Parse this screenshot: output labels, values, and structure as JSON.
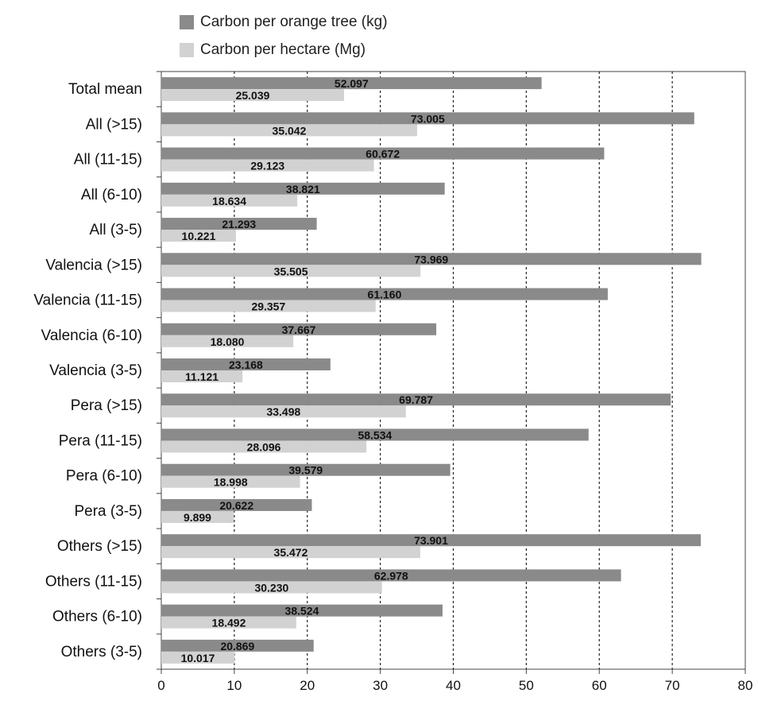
{
  "chart_data": {
    "type": "bar",
    "orientation": "horizontal",
    "categories": [
      "Total mean",
      "All (>15)",
      "All (11-15)",
      "All (6-10)",
      "All (3-5)",
      "Valencia (>15)",
      "Valencia (11-15)",
      "Valencia (6-10)",
      "Valencia (3-5)",
      "Pera (>15)",
      "Pera (11-15)",
      "Pera (6-10)",
      "Pera (3-5)",
      "Others (>15)",
      "Others (11-15)",
      "Others (6-10)",
      "Others (3-5)"
    ],
    "series": [
      {
        "name": "Carbon per orange tree (kg)",
        "color": "#8a8a8a",
        "values": [
          52.097,
          73.005,
          60.672,
          38.821,
          21.293,
          73.969,
          61.16,
          37.667,
          23.168,
          69.787,
          58.534,
          39.579,
          20.622,
          73.901,
          62.978,
          38.524,
          20.869
        ],
        "labels": [
          "52.097",
          "73.005",
          "60.672",
          "38.821",
          "21.293",
          "73.969",
          "61.160",
          "37.667",
          "23.168",
          "69.787",
          "58.534",
          "39.579",
          "20.622",
          "73.901",
          "62.978",
          "38.524",
          "20.869"
        ]
      },
      {
        "name": "Carbon per hectare (Mg)",
        "color": "#d2d2d2",
        "values": [
          25.039,
          35.042,
          29.123,
          18.634,
          10.221,
          35.505,
          29.357,
          18.08,
          11.121,
          33.498,
          28.096,
          18.998,
          9.899,
          35.472,
          30.23,
          18.492,
          10.017
        ],
        "labels": [
          "25.039",
          "35.042",
          "29.123",
          "18.634",
          "10.221",
          "35.505",
          "29.357",
          "18.080",
          "11.121",
          "33.498",
          "28.096",
          "18.998",
          "9.899",
          "35.472",
          "30.230",
          "18.492",
          "10.017"
        ]
      }
    ],
    "xlim": [
      0,
      80
    ],
    "xticks": [
      "0",
      "10",
      "20",
      "30",
      "40",
      "50",
      "60",
      "70",
      "80"
    ],
    "grid": "vertical dashed",
    "legend": "top"
  }
}
